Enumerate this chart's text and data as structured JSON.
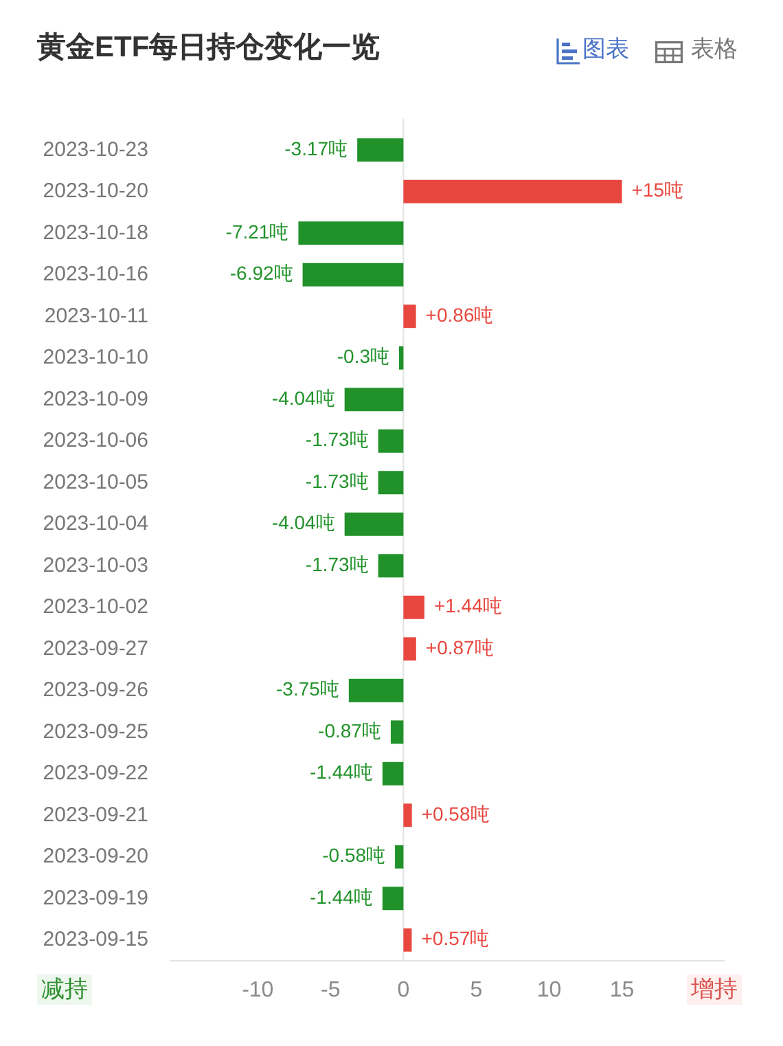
{
  "chart_data": {
    "type": "bar",
    "orientation": "horizontal",
    "title": "黄金ETF每日持仓变化一览",
    "categories": [
      "2023-10-23",
      "2023-10-20",
      "2023-10-18",
      "2023-10-16",
      "2023-10-11",
      "2023-10-10",
      "2023-10-09",
      "2023-10-06",
      "2023-10-05",
      "2023-10-04",
      "2023-10-03",
      "2023-10-02",
      "2023-09-27",
      "2023-09-26",
      "2023-09-25",
      "2023-09-22",
      "2023-09-21",
      "2023-09-20",
      "2023-09-19",
      "2023-09-15"
    ],
    "values": [
      -3.17,
      15,
      -7.21,
      -6.92,
      0.86,
      -0.3,
      -4.04,
      -1.73,
      -1.73,
      -4.04,
      -1.73,
      1.44,
      0.87,
      -3.75,
      -0.87,
      -1.44,
      0.58,
      -0.58,
      -1.44,
      0.57
    ],
    "colors": [
      "#21922a",
      "#e8473f",
      "#21922a",
      "#21922a",
      "#e8473f",
      "#21922a",
      "#21922a",
      "#21922a",
      "#21922a",
      "#21922a",
      "#21922a",
      "#e8473f",
      "#e8473f",
      "#21922a",
      "#21922a",
      "#21922a",
      "#e8473f",
      "#21922a",
      "#21922a",
      "#e8473f"
    ],
    "value_labels": [
      "-3.17吨",
      "+15吨",
      "-7.21吨",
      "-6.92吨",
      "+0.86吨",
      "-0.3吨",
      "-4.04吨",
      "-1.73吨",
      "-1.73吨",
      "-4.04吨",
      "-1.73吨",
      "+1.44吨",
      "+0.87吨",
      "-3.75吨",
      "-0.87吨",
      "-1.44吨",
      "+0.58吨",
      "-0.58吨",
      "-1.44吨",
      "+0.57吨"
    ],
    "xlim": [
      -16,
      22
    ],
    "xticks": [
      -10,
      -5,
      0,
      5,
      10,
      15
    ],
    "grid": false,
    "legend": false,
    "ref_lines": [
      {
        "axis": "x",
        "value": 0,
        "color": "#e3e3e3"
      }
    ],
    "annotations": [
      "图表",
      "表格",
      "减持",
      "增持"
    ]
  }
}
